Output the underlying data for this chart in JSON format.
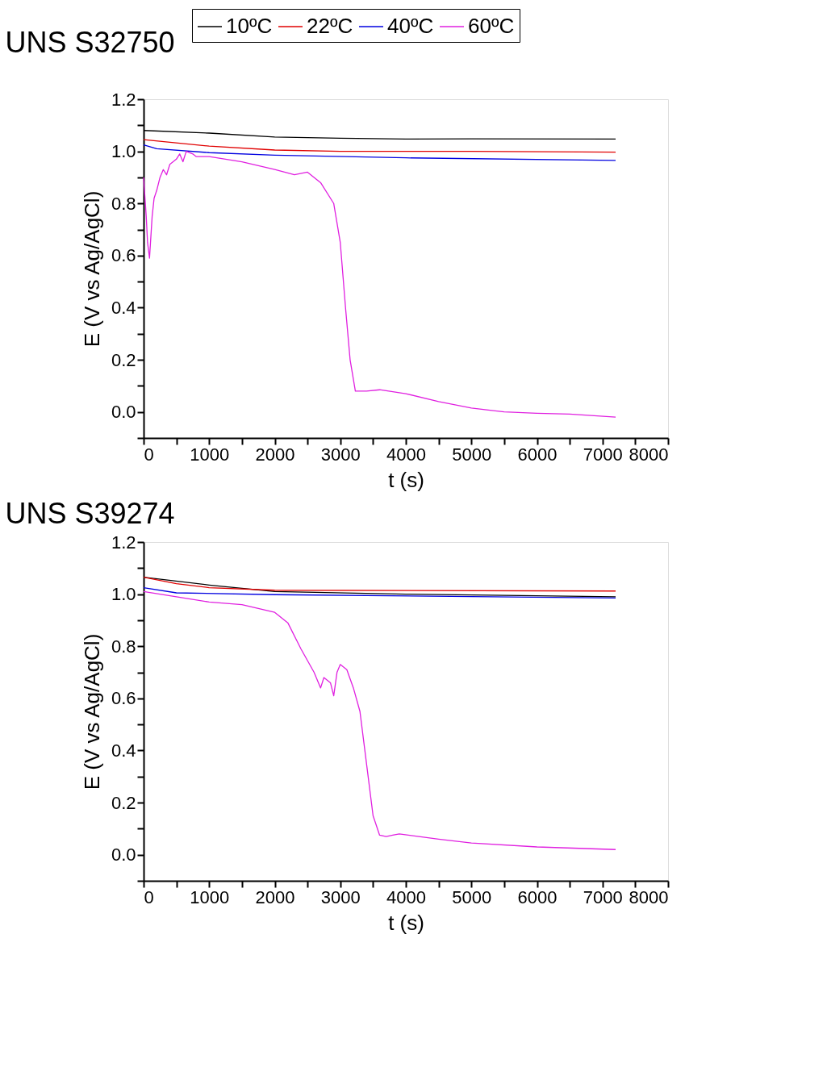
{
  "chart_data": [
    {
      "type": "line",
      "title": "UNS S32750",
      "xlabel": "t (s)",
      "ylabel": "E (V vs Ag/AgCl)",
      "legend": "top",
      "marker": "none",
      "line_style": "solid",
      "grid": false,
      "xlim": [
        0,
        8000
      ],
      "ylim": [
        -0.1,
        1.2
      ],
      "xticks": [
        0,
        {
          "value": 500,
          "label": null
        },
        1000,
        {
          "value": 1500,
          "label": null
        },
        2000,
        {
          "value": 2500,
          "label": null
        },
        3000,
        {
          "value": 3500,
          "label": null
        },
        4000,
        {
          "value": 4500,
          "label": null
        },
        5000,
        {
          "value": 5500,
          "label": null
        },
        6000,
        {
          "value": 6500,
          "label": null
        },
        7000,
        {
          "value": 7500,
          "label": null
        },
        8000
      ],
      "yticks": [
        {
          "value": -0.1,
          "label": null
        },
        {
          "value": 0,
          "label": "0.0"
        },
        {
          "value": 0.1,
          "label": null
        },
        {
          "value": 0.2,
          "label": "0.2"
        },
        {
          "value": 0.3,
          "label": null
        },
        {
          "value": 0.4,
          "label": "0.4"
        },
        {
          "value": 0.5,
          "label": null
        },
        {
          "value": 0.6,
          "label": "0.6"
        },
        {
          "value": 0.7,
          "label": null
        },
        {
          "value": 0.8,
          "label": "0.8"
        },
        {
          "value": 0.9,
          "label": null
        },
        {
          "value": 1.0,
          "label": "1.0"
        },
        {
          "value": 1.1,
          "label": null
        },
        {
          "value": 1.2,
          "label": "1.2"
        }
      ],
      "series": [
        {
          "name": "10ºC",
          "color": "#000000",
          "x": [
            0,
            1000,
            2000,
            3000,
            4000,
            5000,
            7200
          ],
          "values": [
            1.08,
            1.07,
            1.055,
            1.05,
            1.047,
            1.048,
            1.047
          ]
        },
        {
          "name": "22ºC",
          "color": "#e00000",
          "x": [
            0,
            1000,
            2000,
            3000,
            5000,
            7200
          ],
          "values": [
            1.045,
            1.02,
            1.005,
            1.0,
            1.0,
            0.997
          ]
        },
        {
          "name": "40ºC",
          "color": "#0000e0",
          "x": [
            0,
            200,
            1000,
            2000,
            4000,
            7200
          ],
          "values": [
            1.025,
            1.01,
            0.995,
            0.985,
            0.975,
            0.965
          ]
        },
        {
          "name": "60ºC",
          "color": "#e020e0",
          "x": [
            0,
            40,
            60,
            90,
            130,
            160,
            200,
            250,
            300,
            350,
            400,
            500,
            550,
            600,
            650,
            750,
            800,
            1000,
            1500,
            2000,
            2300,
            2500,
            2700,
            2900,
            3000,
            3080,
            3150,
            3230,
            3400,
            3600,
            4000,
            4500,
            5000,
            5500,
            6000,
            6500,
            7200
          ],
          "values": [
            0.9,
            0.75,
            0.65,
            0.59,
            0.75,
            0.82,
            0.85,
            0.9,
            0.93,
            0.91,
            0.95,
            0.97,
            0.99,
            0.96,
            1.0,
            0.99,
            0.98,
            0.98,
            0.96,
            0.93,
            0.91,
            0.92,
            0.88,
            0.8,
            0.65,
            0.4,
            0.2,
            0.08,
            0.08,
            0.085,
            0.07,
            0.04,
            0.015,
            0.0,
            -0.005,
            -0.008,
            -0.02
          ]
        }
      ]
    },
    {
      "type": "line",
      "title": "UNS S39274",
      "xlabel": "t (s)",
      "ylabel": "E (V vs Ag/AgCl)",
      "marker": "none",
      "line_style": "solid",
      "grid": false,
      "xlim": [
        0,
        8000
      ],
      "ylim": [
        -0.1,
        1.2
      ],
      "xticks": [
        0,
        {
          "value": 500,
          "label": null
        },
        1000,
        {
          "value": 1500,
          "label": null
        },
        2000,
        {
          "value": 2500,
          "label": null
        },
        3000,
        {
          "value": 3500,
          "label": null
        },
        4000,
        {
          "value": 4500,
          "label": null
        },
        5000,
        {
          "value": 5500,
          "label": null
        },
        6000,
        {
          "value": 6500,
          "label": null
        },
        7000,
        {
          "value": 7500,
          "label": null
        },
        8000
      ],
      "yticks": [
        {
          "value": -0.1,
          "label": null
        },
        {
          "value": 0,
          "label": "0.0"
        },
        {
          "value": 0.1,
          "label": null
        },
        {
          "value": 0.2,
          "label": "0.2"
        },
        {
          "value": 0.3,
          "label": null
        },
        {
          "value": 0.4,
          "label": "0.4"
        },
        {
          "value": 0.5,
          "label": null
        },
        {
          "value": 0.6,
          "label": "0.6"
        },
        {
          "value": 0.7,
          "label": null
        },
        {
          "value": 0.8,
          "label": "0.8"
        },
        {
          "value": 0.9,
          "label": null
        },
        {
          "value": 1.0,
          "label": "1.0"
        },
        {
          "value": 1.1,
          "label": null
        },
        {
          "value": 1.2,
          "label": "1.2"
        }
      ],
      "series": [
        {
          "color": "#000000",
          "x": [
            0,
            1000,
            2000,
            4000,
            7200
          ],
          "values": [
            1.065,
            1.035,
            1.01,
            1.0,
            0.99
          ]
        },
        {
          "color": "#e00000",
          "x": [
            0,
            500,
            1000,
            2000,
            7200
          ],
          "values": [
            1.065,
            1.04,
            1.025,
            1.015,
            1.012
          ]
        },
        {
          "color": "#0000e0",
          "x": [
            0,
            500,
            2000,
            7200
          ],
          "values": [
            1.025,
            1.005,
            0.998,
            0.985
          ]
        },
        {
          "color": "#e020e0",
          "x": [
            0,
            500,
            1000,
            1500,
            2000,
            2200,
            2400,
            2600,
            2700,
            2750,
            2850,
            2900,
            2950,
            3000,
            3100,
            3200,
            3300,
            3400,
            3500,
            3600,
            3700,
            3800,
            3900,
            4200,
            4500,
            5000,
            6000,
            7200
          ],
          "values": [
            1.01,
            0.99,
            0.97,
            0.96,
            0.93,
            0.89,
            0.79,
            0.7,
            0.64,
            0.68,
            0.66,
            0.61,
            0.7,
            0.73,
            0.71,
            0.64,
            0.55,
            0.35,
            0.15,
            0.075,
            0.07,
            0.075,
            0.08,
            0.07,
            0.06,
            0.045,
            0.03,
            0.02
          ]
        }
      ]
    }
  ]
}
